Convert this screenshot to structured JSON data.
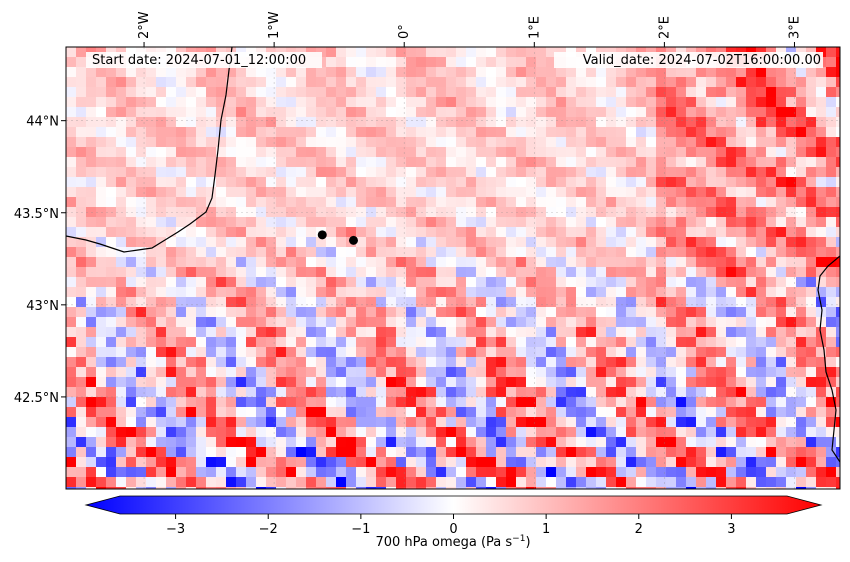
{
  "map": {
    "start_label": "Start date: 2024-07-01_12:00:00",
    "valid_label": "Valid_date: 2024-07-02T16:00:00.00",
    "lon_ticks": [
      {
        "value": -2,
        "label": "2°W"
      },
      {
        "value": -1,
        "label": "1°W"
      },
      {
        "value": 0,
        "label": "0°"
      },
      {
        "value": 1,
        "label": "1°E"
      },
      {
        "value": 2,
        "label": "2°E"
      },
      {
        "value": 3,
        "label": "3°E"
      }
    ],
    "lat_ticks": [
      {
        "value": 44.0,
        "label": "44°N"
      },
      {
        "value": 43.5,
        "label": "43.5°N"
      },
      {
        "value": 43.0,
        "label": "43°N"
      },
      {
        "value": 42.5,
        "label": "42.5°N"
      }
    ],
    "extent": {
      "lon_min": -2.6,
      "lon_max": 3.35,
      "lat_min": 42.0,
      "lat_max": 44.4
    },
    "markers": [
      {
        "lon": -0.63,
        "lat": 43.38
      },
      {
        "lon": -0.39,
        "lat": 43.35
      }
    ],
    "colormap": {
      "low": "#0000ff",
      "mid": "#ffffff",
      "high": "#ff0000"
    }
  },
  "colorbar": {
    "label": "700 hPa omega (Pa s",
    "label_sup": "−1",
    "label_end": ")",
    "vmin": -3.6,
    "vmax": 3.6,
    "ticks": [
      {
        "value": -3,
        "label": "−3"
      },
      {
        "value": -2,
        "label": "−2"
      },
      {
        "value": -1,
        "label": "−1"
      },
      {
        "value": 0,
        "label": "0"
      },
      {
        "value": 1,
        "label": "1"
      },
      {
        "value": 2,
        "label": "2"
      },
      {
        "value": 3,
        "label": "3"
      }
    ]
  }
}
